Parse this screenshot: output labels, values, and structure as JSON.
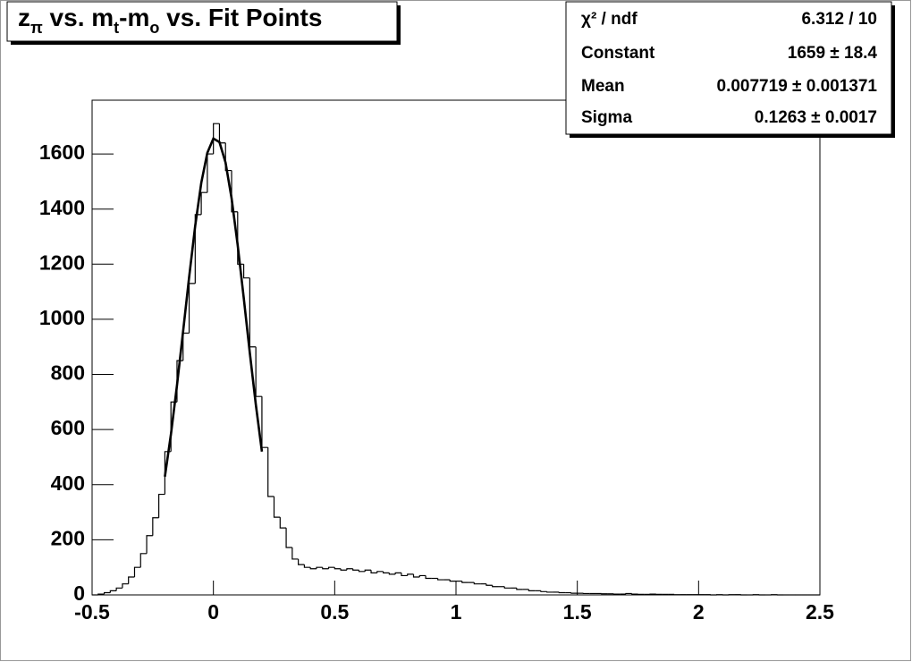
{
  "chart_data": {
    "type": "histogram",
    "title": [
      {
        "text": "z"
      },
      {
        "text": "π",
        "sub": true
      },
      {
        "text": " vs. m"
      },
      {
        "text": "t",
        "sub": true
      },
      {
        "text": "-m"
      },
      {
        "text": "o",
        "sub": true
      },
      {
        "text": " vs. Fit Points"
      }
    ],
    "bins": [
      -0.5,
      -0.475,
      -0.45,
      -0.425,
      -0.4,
      -0.375,
      -0.35,
      -0.325,
      -0.3,
      -0.275,
      -0.25,
      -0.225,
      -0.2,
      -0.175,
      -0.15,
      -0.125,
      -0.1,
      -0.075,
      -0.05,
      -0.025,
      0,
      0.025,
      0.05,
      0.075,
      0.1,
      0.125,
      0.15,
      0.175,
      0.2,
      0.225,
      0.25,
      0.275,
      0.3,
      0.325,
      0.35,
      0.375,
      0.4,
      0.425,
      0.45,
      0.475,
      0.5,
      0.525,
      0.55,
      0.575,
      0.6,
      0.625,
      0.65,
      0.675,
      0.7,
      0.725,
      0.75,
      0.775,
      0.8,
      0.825,
      0.85,
      0.875,
      0.9,
      0.925,
      0.95,
      0.975,
      1,
      1.025,
      1.05,
      1.075,
      1.1,
      1.125,
      1.15,
      1.175,
      1.2,
      1.225,
      1.25,
      1.275,
      1.3,
      1.325,
      1.35,
      1.375,
      1.4,
      1.425,
      1.45,
      1.475,
      1.5,
      1.525,
      1.55,
      1.575,
      1.6,
      1.625,
      1.65,
      1.675,
      1.7,
      1.725,
      1.75,
      1.775,
      1.8,
      1.825,
      1.85,
      1.875,
      1.9,
      1.925,
      1.95,
      1.975,
      2,
      2.025,
      2.05,
      2.075,
      2.1,
      2.125,
      2.15,
      2.175,
      2.2,
      2.225,
      2.25,
      2.275,
      2.3,
      2.325,
      2.35,
      2.375,
      2.4,
      2.425,
      2.45,
      2.475,
      2.5
    ],
    "values": [
      0,
      3,
      8,
      15,
      25,
      40,
      65,
      100,
      150,
      215,
      280,
      365,
      520,
      700,
      850,
      950,
      1130,
      1380,
      1460,
      1600,
      1710,
      1640,
      1540,
      1390,
      1200,
      1150,
      900,
      720,
      535,
      357,
      282,
      243,
      172,
      130,
      110,
      100,
      95,
      100,
      95,
      100,
      95,
      90,
      95,
      90,
      85,
      90,
      80,
      85,
      80,
      75,
      80,
      70,
      75,
      65,
      70,
      60,
      60,
      55,
      55,
      50,
      50,
      45,
      45,
      40,
      40,
      35,
      30,
      30,
      25,
      25,
      20,
      20,
      15,
      15,
      12,
      10,
      10,
      8,
      8,
      6,
      6,
      5,
      5,
      5,
      4,
      4,
      3,
      3,
      5,
      3,
      2,
      2,
      3,
      2,
      2,
      2,
      1,
      1,
      1,
      1,
      1,
      1,
      0,
      1,
      0,
      1,
      1,
      0,
      0,
      1,
      0,
      0,
      1,
      0,
      0,
      0,
      0,
      0,
      0,
      0
    ],
    "color": "#000000",
    "fit": {
      "color": "#000000",
      "x": [
        -0.2,
        -0.175,
        -0.15,
        -0.125,
        -0.1,
        -0.075,
        -0.05,
        -0.025,
        0,
        0.025,
        0.05,
        0.075,
        0.1,
        0.125,
        0.15,
        0.175,
        0.2
      ],
      "y": [
        429,
        583,
        761,
        955,
        1153,
        1339,
        1495,
        1604,
        1656,
        1643,
        1569,
        1439,
        1270,
        1078,
        879,
        690,
        520
      ]
    },
    "xlim": [
      -0.5,
      2.5
    ],
    "xticks": [
      -0.5,
      0,
      0.5,
      1,
      1.5,
      2,
      2.5
    ],
    "ylim": [
      0,
      1795
    ],
    "yticks": [
      0,
      200,
      400,
      600,
      800,
      1000,
      1200,
      1400,
      1600
    ],
    "stats": [
      {
        "label": "χ² / ndf",
        "value": "6.312 / 10"
      },
      {
        "label": "Constant",
        "value": "1659 ± 18.4"
      },
      {
        "label": "Mean",
        "value": "0.007719 ± 0.001371"
      },
      {
        "label": "Sigma",
        "value": "0.1263 ± 0.0017"
      }
    ]
  }
}
